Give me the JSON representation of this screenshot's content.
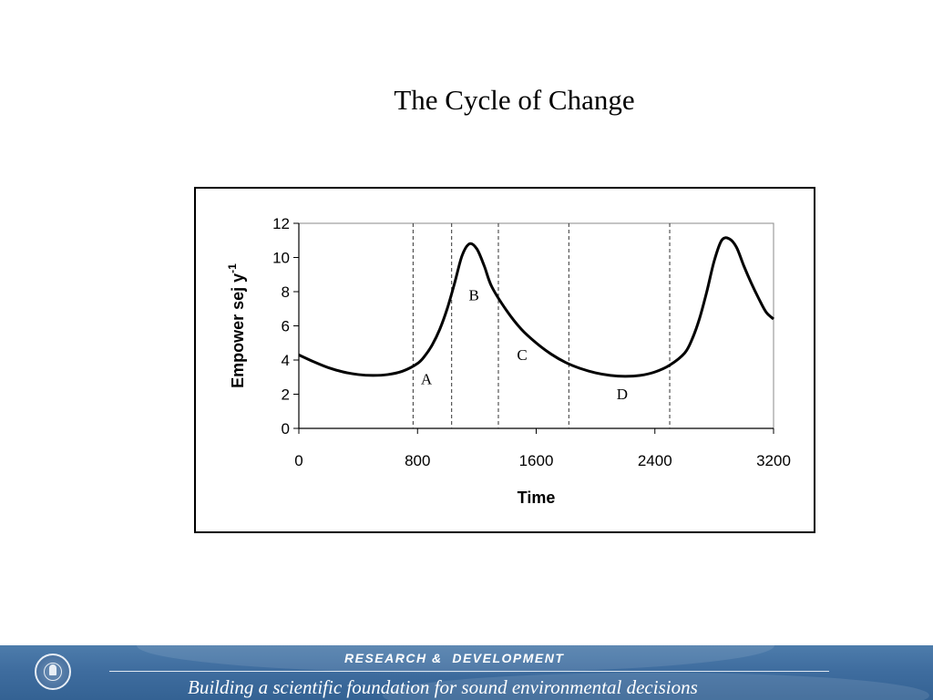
{
  "slide": {
    "title": "The Cycle of Change"
  },
  "chart_data": {
    "type": "line",
    "xlabel": "Time",
    "ylabel_main": "Empower sej y",
    "ylabel_superscript": "-1",
    "xlim": [
      0,
      3200
    ],
    "ylim": [
      0,
      12
    ],
    "xticks": [
      0,
      800,
      1600,
      2400,
      3200
    ],
    "yticks": [
      0,
      2,
      4,
      6,
      8,
      10,
      12
    ],
    "grid": false,
    "series": [
      {
        "x": [
          0,
          100,
          200,
          300,
          400,
          500,
          600,
          700,
          800,
          850,
          900,
          950,
          1000,
          1050,
          1100,
          1150,
          1200,
          1250,
          1300,
          1400,
          1500,
          1600,
          1700,
          1800,
          1900,
          2000,
          2100,
          2200,
          2300,
          2400,
          2500,
          2600,
          2650,
          2700,
          2750,
          2800,
          2850,
          2900,
          2950,
          3000,
          3050,
          3100,
          3150,
          3200
        ],
        "y": [
          4.3,
          3.9,
          3.55,
          3.3,
          3.15,
          3.1,
          3.15,
          3.35,
          3.8,
          4.25,
          4.9,
          5.8,
          7.0,
          8.5,
          10.1,
          10.8,
          10.5,
          9.5,
          8.3,
          6.9,
          5.8,
          5.0,
          4.35,
          3.85,
          3.5,
          3.25,
          3.1,
          3.05,
          3.1,
          3.3,
          3.7,
          4.4,
          5.2,
          6.4,
          8.0,
          9.8,
          11.0,
          11.1,
          10.6,
          9.5,
          8.5,
          7.6,
          6.8,
          6.4
        ]
      }
    ],
    "phase_boundaries": [
      770,
      1030,
      1345,
      1820,
      2500
    ],
    "phase_labels": [
      {
        "text": "A",
        "x": 860,
        "y": 2.6
      },
      {
        "text": "B",
        "x": 1180,
        "y": 7.5
      },
      {
        "text": "C",
        "x": 1505,
        "y": 4.0
      },
      {
        "text": "D",
        "x": 2180,
        "y": 1.7
      }
    ]
  },
  "footer": {
    "heading": "RESEARCH &  DEVELOPMENT",
    "tagline": "Building a scientific foundation for sound environmental decisions",
    "logo_icon": "epa-seal-icon"
  }
}
